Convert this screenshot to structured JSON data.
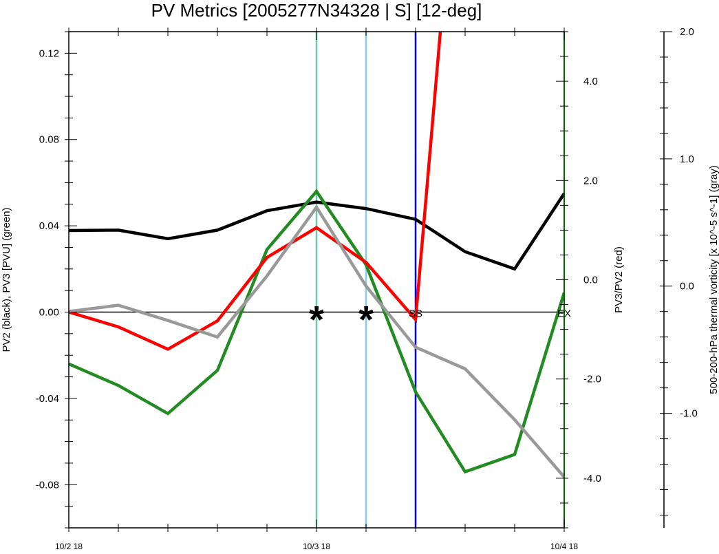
{
  "chart_data": {
    "type": "line",
    "title": "PV Metrics [2005277N34328 | S] [12-deg]",
    "x_tick_labels": [
      "10/2 18",
      "10/3 18",
      "10/4 18"
    ],
    "x_index_range": [
      0,
      10
    ],
    "left_axis": {
      "label": "PV2 (black), PV3 [PVU] (green)",
      "ylim": [
        -0.1,
        0.13
      ],
      "ticks": [
        0.12,
        0.08,
        0.04,
        0.0,
        -0.04,
        -0.08
      ],
      "tick_labels": [
        "0.12",
        "0.08",
        "0.04",
        "0.00",
        "-0.04",
        "-0.08"
      ]
    },
    "right_axis_1": {
      "label": "PV3/PV2 (red)",
      "ylim": [
        -5.0,
        5.0
      ],
      "ticks": [
        4.0,
        2.0,
        0.0,
        -2.0,
        -4.0
      ],
      "tick_labels": [
        "4.0",
        "2.0",
        "0.0",
        "-2.0",
        "-4.0"
      ]
    },
    "right_axis_2": {
      "label": "500-200-hPa thermal vorticity [x 10^-5 s^-1] (gray)",
      "ylim": [
        -1.9,
        2.0
      ],
      "ticks": [
        2.0,
        1.0,
        0.0,
        -1.0
      ],
      "tick_labels": [
        "2.0",
        "1.0",
        "0.0",
        "-1.0"
      ]
    },
    "series": [
      {
        "key": "pv2",
        "axis": "left",
        "color": "#000000",
        "x": [
          0,
          1,
          2,
          3,
          4,
          5,
          6,
          7,
          8,
          9,
          10
        ],
        "y": [
          0.0378,
          0.038,
          0.034,
          0.038,
          0.047,
          0.051,
          0.048,
          0.043,
          0.028,
          0.02,
          0.055
        ]
      },
      {
        "key": "pv3",
        "axis": "left",
        "color": "#228B22",
        "x": [
          0,
          1,
          2,
          3,
          4,
          5,
          6,
          7,
          8,
          9,
          10
        ],
        "y": [
          -0.024,
          -0.034,
          -0.047,
          -0.027,
          0.029,
          0.056,
          0.022,
          -0.037,
          -0.074,
          -0.066,
          0.009
        ]
      },
      {
        "key": "ratio",
        "axis": "right1",
        "color": "#ff0000",
        "x": [
          0,
          1,
          2,
          3,
          4,
          5,
          6,
          7,
          7.5
        ],
        "y": [
          -0.65,
          -0.95,
          -1.4,
          -0.83,
          0.45,
          1.05,
          0.35,
          -0.8,
          5.0
        ]
      },
      {
        "key": "thermal_vorticity",
        "axis": "right2",
        "color": "#999999",
        "x": [
          0,
          1,
          2,
          3,
          4,
          5,
          6,
          7,
          8,
          9,
          10
        ],
        "y": [
          -0.2,
          -0.15,
          -0.27,
          -0.4,
          0.08,
          0.62,
          0.0,
          -0.48,
          -0.65,
          -1.05,
          -1.5
        ]
      }
    ],
    "zero_line": {
      "axis": "left",
      "y": 0.0
    },
    "vertical_lines": [
      {
        "x": 5,
        "color": "#66cdaa"
      },
      {
        "x": 6,
        "color": "#87ceeb"
      },
      {
        "x": 7,
        "color": "#0000ff"
      }
    ],
    "annotations": [
      {
        "x": 5,
        "text": "*",
        "style": "star"
      },
      {
        "x": 6,
        "text": "*",
        "style": "star"
      },
      {
        "x": 7,
        "text": "SS",
        "style": "text"
      },
      {
        "x": 10,
        "text": "EX",
        "style": "text"
      }
    ],
    "grid": false
  }
}
